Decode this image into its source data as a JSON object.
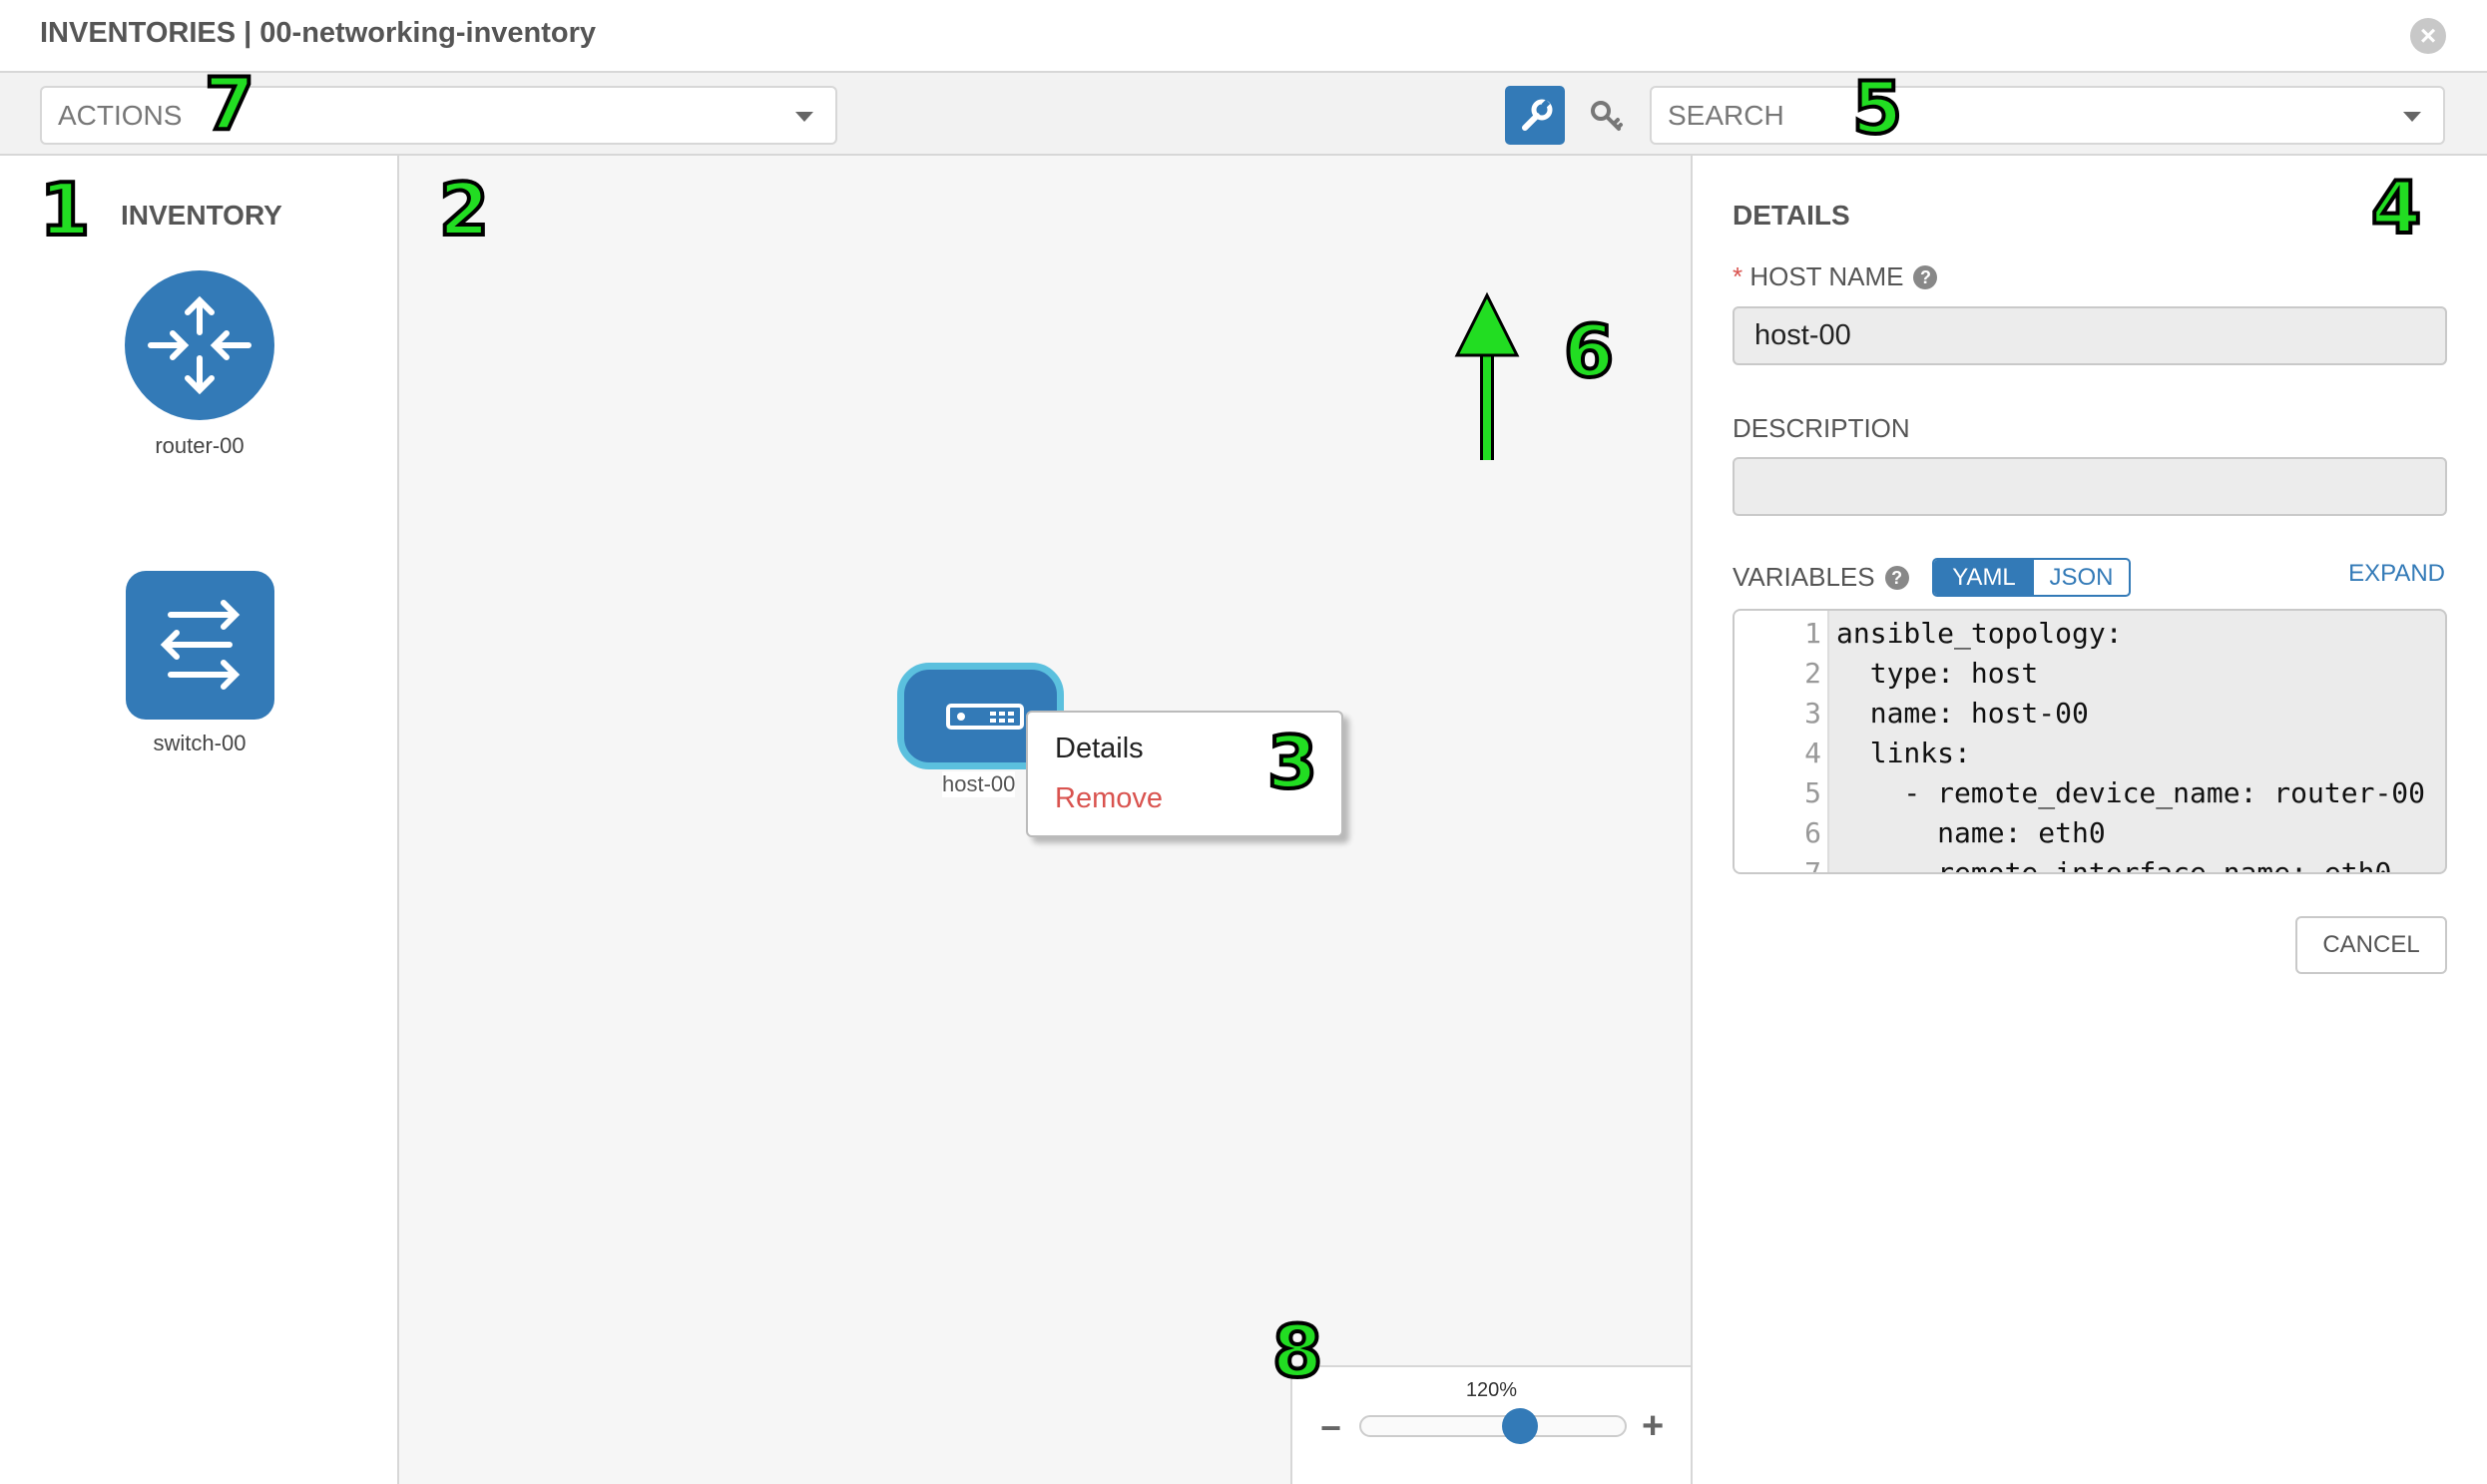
{
  "header": {
    "title": "INVENTORIES | 00-networking-inventory"
  },
  "toolbar": {
    "actions_label": "ACTIONS",
    "search_placeholder": "SEARCH"
  },
  "inventory": {
    "heading": "INVENTORY",
    "items": [
      {
        "label": "router-00",
        "icon": "router-icon"
      },
      {
        "label": "switch-00",
        "icon": "switch-icon"
      }
    ]
  },
  "canvas": {
    "node": {
      "label": "host-00",
      "icon": "host-icon"
    },
    "context_menu": [
      {
        "label": "Details"
      },
      {
        "label": "Remove",
        "color": "#d9534f"
      }
    ],
    "zoom": {
      "label": "120%",
      "value": 120
    }
  },
  "details": {
    "heading": "DETAILS",
    "host_name_label": "HOST NAME",
    "host_name_value": "host-00",
    "description_label": "DESCRIPTION",
    "description_value": "",
    "variables_label": "VARIABLES",
    "toggle": [
      {
        "label": "YAML",
        "active": true
      },
      {
        "label": "JSON",
        "active": false
      }
    ],
    "expand_label": "EXPAND",
    "code": [
      {
        "n": "1",
        "text": "ansible_topology:"
      },
      {
        "n": "2",
        "text": "  type: host"
      },
      {
        "n": "3",
        "text": "  name: host-00"
      },
      {
        "n": "4",
        "text": "  links:"
      },
      {
        "n": "5",
        "text": "    - remote_device_name: router-00"
      },
      {
        "n": "6",
        "text": "      name: eth0"
      },
      {
        "n": "7",
        "text": "      remote_interface_name: eth0"
      }
    ],
    "cancel_label": "CANCEL"
  },
  "annotations": [
    "1",
    "2",
    "3",
    "4",
    "5",
    "6",
    "7",
    "8"
  ],
  "colors": {
    "accent": "#337ab7",
    "node_highlight": "#5bc0de",
    "danger": "#d9534f",
    "annotation": "#22dd22"
  }
}
